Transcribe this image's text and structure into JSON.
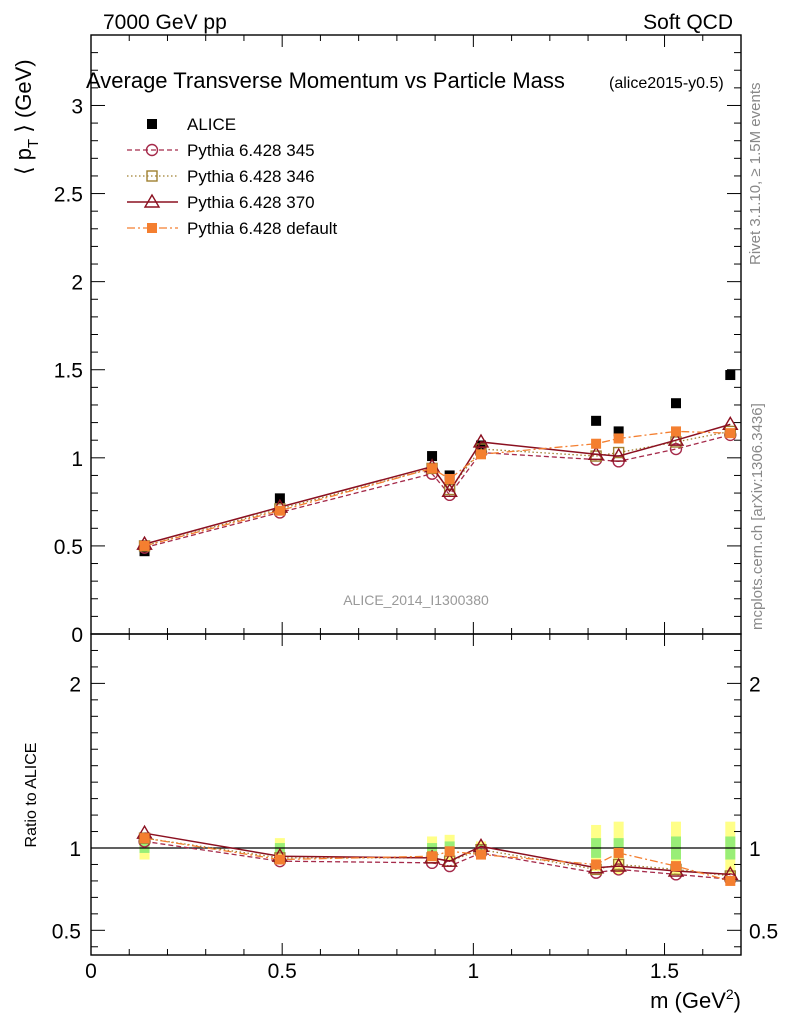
{
  "header": {
    "left": "7000 GeV pp",
    "right": "Soft QCD",
    "title": "Average Transverse Momentum vs Particle Mass",
    "tag": "(alice2015-y0.5)",
    "side_top": "Rivet 3.1.10, ≥ 1.5M events",
    "side_bottom": "mcplots.cern.ch [arXiv:1306.3436]",
    "watermark": "ALICE_2014_I1300380"
  },
  "axes": {
    "ylabel_top_left": "⟨ p",
    "ylabel_top_sub": "T",
    "ylabel_top_right": " ⟩ (GeV)",
    "ylabel_bottom": "Ratio to ALICE",
    "xlabel_main": "m (GeV",
    "xlabel_sup": "2",
    "xlabel_end": ")"
  },
  "legend": [
    {
      "key": "alice",
      "label": "ALICE"
    },
    {
      "key": "p345",
      "label": "Pythia 6.428 345"
    },
    {
      "key": "p346",
      "label": "Pythia 6.428 346"
    },
    {
      "key": "p370",
      "label": "Pythia 6.428 370"
    },
    {
      "key": "pdef",
      "label": "Pythia 6.428 default"
    }
  ],
  "colors": {
    "alice": "#000000",
    "p345": "#a52a4a",
    "p346": "#a08030",
    "p370": "#8b1020",
    "pdef": "#f47f30",
    "band_inner": "#99ee77",
    "band_outer": "#ffff88"
  },
  "chart_data": [
    {
      "type": "scatter",
      "panel": "main",
      "title": "Average Transverse Momentum vs Particle Mass",
      "xlabel": "m (GeV^2)",
      "ylabel": "<pT> (GeV)",
      "xlim": [
        0,
        1.7
      ],
      "ylim": [
        0,
        3.4
      ],
      "yticks": [
        0,
        0.5,
        1,
        1.5,
        2,
        2.5,
        3
      ],
      "xticks": [
        0,
        0.5,
        1,
        1.5
      ],
      "x": [
        0.14,
        0.494,
        0.892,
        0.938,
        1.02,
        1.321,
        1.38,
        1.53,
        1.672
      ],
      "series": [
        {
          "name": "ALICE",
          "key": "alice",
          "values": [
            0.47,
            0.77,
            1.01,
            0.9,
            1.07,
            1.21,
            1.15,
            1.31,
            1.47
          ]
        },
        {
          "name": "Pythia 6.428 345",
          "key": "p345",
          "values": [
            0.49,
            0.69,
            0.91,
            0.79,
            1.03,
            0.99,
            0.98,
            1.05,
            1.13
          ]
        },
        {
          "name": "Pythia 6.428 346",
          "key": "p346",
          "values": [
            0.5,
            0.71,
            0.94,
            0.82,
            1.05,
            1.01,
            1.03,
            1.09,
            1.15
          ]
        },
        {
          "name": "Pythia 6.428 370",
          "key": "p370",
          "values": [
            0.51,
            0.72,
            0.95,
            0.81,
            1.09,
            1.02,
            1.01,
            1.1,
            1.19
          ]
        },
        {
          "name": "Pythia 6.428 default",
          "key": "pdef",
          "values": [
            0.5,
            0.7,
            0.94,
            0.88,
            1.02,
            1.08,
            1.11,
            1.15,
            1.14
          ]
        }
      ]
    },
    {
      "type": "scatter",
      "panel": "ratio",
      "ylabel": "Ratio to ALICE",
      "xlim": [
        0,
        1.7
      ],
      "ylim": [
        0.35,
        2.3
      ],
      "yticks": [
        0.5,
        1,
        2
      ],
      "x": [
        0.14,
        0.494,
        0.892,
        0.938,
        1.02,
        1.321,
        1.38,
        1.53,
        1.672
      ],
      "band_inner": [
        0.03,
        0.03,
        0.03,
        0.04,
        0.02,
        0.06,
        0.06,
        0.07,
        0.07
      ],
      "band_outer": [
        0.07,
        0.06,
        0.07,
        0.08,
        0.04,
        0.14,
        0.16,
        0.16,
        0.16
      ],
      "series": [
        {
          "name": "Pythia 6.428 345",
          "key": "p345",
          "values": [
            1.04,
            0.92,
            0.91,
            0.89,
            0.97,
            0.85,
            0.87,
            0.84,
            0.81
          ]
        },
        {
          "name": "Pythia 6.428 346",
          "key": "p346",
          "values": [
            1.06,
            0.94,
            0.94,
            0.92,
            0.99,
            0.87,
            0.9,
            0.87,
            0.83
          ]
        },
        {
          "name": "Pythia 6.428 370",
          "key": "p370",
          "values": [
            1.09,
            0.95,
            0.94,
            0.92,
            1.01,
            0.88,
            0.89,
            0.86,
            0.84
          ]
        },
        {
          "name": "Pythia 6.428 default",
          "key": "pdef",
          "values": [
            1.06,
            0.93,
            0.95,
            0.98,
            0.96,
            0.9,
            0.97,
            0.89,
            0.8
          ]
        }
      ]
    }
  ]
}
